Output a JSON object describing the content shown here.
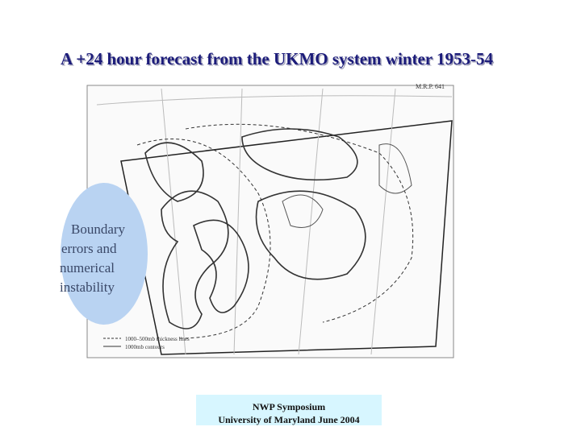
{
  "title": "A +24 hour forecast from the UKMO system winter 1953-54",
  "map": {
    "ref": "M.R.P. 641",
    "legend": [
      "1000–500mb thickness lines",
      "1000mb contours"
    ]
  },
  "callout": {
    "lines": [
      "Boundary",
      "errors and",
      "numerical",
      "instability"
    ]
  },
  "footer": {
    "lines": [
      "NWP Symposium",
      "University of Maryland June 2004"
    ]
  }
}
